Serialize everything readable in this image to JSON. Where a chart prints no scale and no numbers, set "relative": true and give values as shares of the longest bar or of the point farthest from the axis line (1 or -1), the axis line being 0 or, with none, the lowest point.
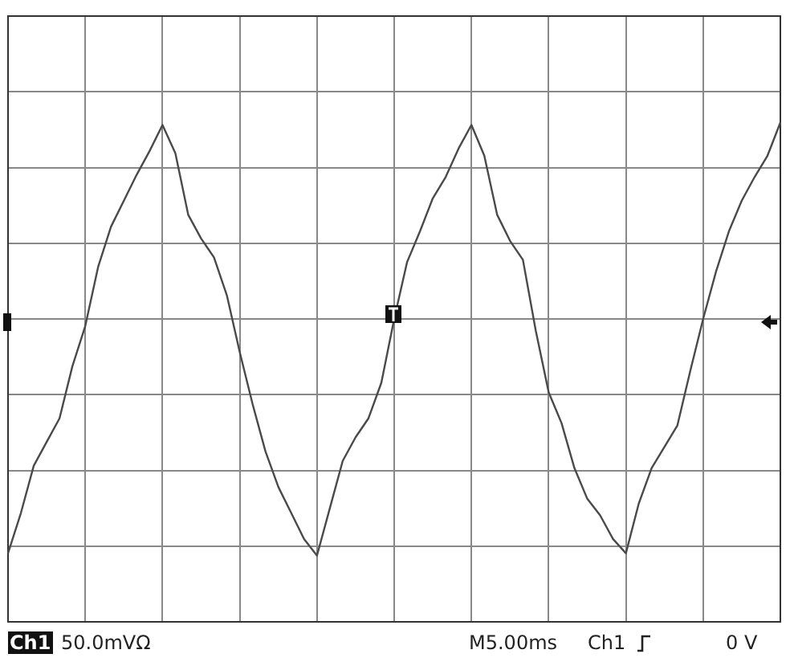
{
  "chart_data": {
    "type": "line",
    "relative": true,
    "grid": true,
    "legend": false,
    "marker": "none",
    "line_style": "solid",
    "categories": [
      null,
      null,
      null,
      null,
      null,
      null,
      null,
      null,
      null,
      null,
      null,
      null,
      null,
      null,
      null,
      null,
      null,
      null,
      null,
      null,
      null,
      null,
      null,
      null,
      null,
      null,
      null,
      null,
      null,
      null,
      null,
      null,
      null,
      null,
      null,
      null,
      null,
      null,
      null,
      null,
      null,
      null,
      null,
      null,
      null,
      null,
      null,
      null,
      null,
      null,
      null,
      null,
      null,
      null,
      null,
      null,
      null,
      null,
      null,
      null,
      null
    ],
    "series": [
      {
        "color": "#4a4a4a",
        "values": [
          -0.99,
          -0.82,
          -0.62,
          -0.52,
          -0.42,
          -0.2,
          -0.03,
          0.22,
          0.39,
          0.5,
          0.61,
          0.71,
          0.82,
          0.7,
          0.44,
          0.34,
          0.26,
          0.1,
          -0.14,
          -0.36,
          -0.56,
          -0.71,
          -0.82,
          -0.93,
          -1.0,
          -0.8,
          -0.6,
          -0.5,
          -0.42,
          -0.27,
          0,
          0.24,
          0.37,
          0.51,
          0.6,
          0.72,
          0.82,
          0.69,
          0.44,
          0.33,
          0.25,
          -0.05,
          -0.31,
          -0.44,
          -0.63,
          -0.76,
          -0.83,
          -0.93,
          -0.99,
          -0.78,
          -0.63,
          -0.54,
          -0.45,
          -0.22,
          0,
          0.2,
          0.37,
          0.5,
          0.6,
          0.69,
          0.83
        ]
      }
    ],
    "annotations": [
      "Ch1",
      "50.0mVΩ",
      "M5.00ms",
      "Ch1",
      "0 V"
    ]
  }
}
